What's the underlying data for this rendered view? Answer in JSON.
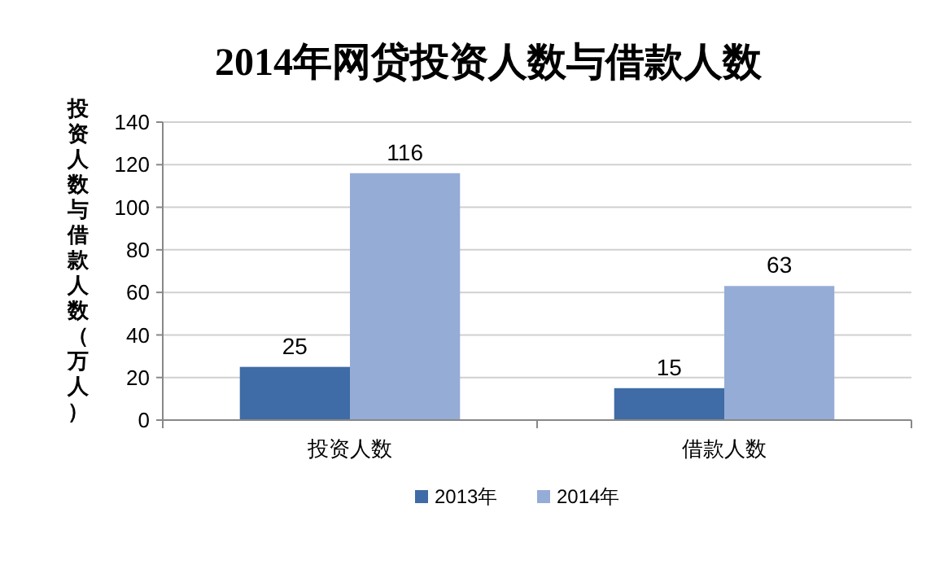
{
  "chart_data": {
    "type": "bar",
    "title": "2014年网贷投资人数与借款人数",
    "ylabel": "投资人数与借款人数（万人）",
    "categories": [
      "投资人数",
      "借款人数"
    ],
    "series": [
      {
        "name": "2013年",
        "color": "#3f6ca6",
        "values": [
          25,
          15
        ]
      },
      {
        "name": "2014年",
        "color": "#95acd6",
        "values": [
          116,
          63
        ]
      }
    ],
    "ylim": [
      0,
      140
    ],
    "yticks": [
      0,
      20,
      40,
      60,
      80,
      100,
      120,
      140
    ],
    "grid": "y",
    "legend": "bottom",
    "data_labels": true
  }
}
